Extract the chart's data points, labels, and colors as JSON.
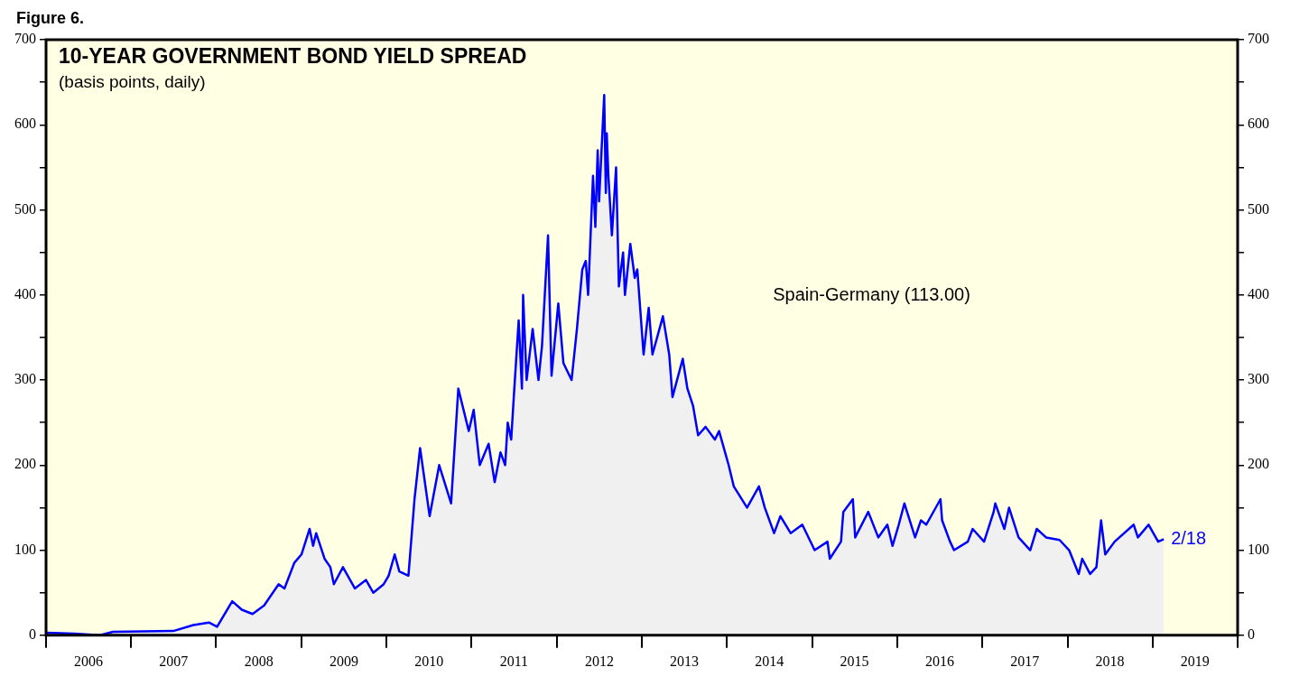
{
  "chart_data": {
    "type": "area",
    "title": "10-YEAR GOVERNMENT BOND YIELD SPREAD",
    "subtitle": "(basis points, daily)",
    "annotations": [
      "Figure 6.",
      "Spain-Germany (113.00)",
      {
        "text": "2/18",
        "x": "2019-02-18",
        "y": 113
      }
    ],
    "x": [
      "2006-01-01",
      "2006-05-01",
      "2006-08-20",
      "2006-10-15",
      "2007-07-01",
      "2007-09-25",
      "2007-12-01",
      "2008-01-05",
      "2008-03-10",
      "2008-04-20",
      "2008-06-05",
      "2008-07-25",
      "2008-09-25",
      "2008-10-20",
      "2008-12-01",
      "2009-01-01",
      "2009-02-05",
      "2009-02-20",
      "2009-03-05",
      "2009-04-10",
      "2009-05-05",
      "2009-05-20",
      "2009-06-28",
      "2009-08-18",
      "2009-10-05",
      "2009-11-05",
      "2009-12-20",
      "2010-01-10",
      "2010-02-05",
      "2010-02-25",
      "2010-04-05",
      "2010-05-01",
      "2010-05-25",
      "2010-07-05",
      "2010-08-15",
      "2010-10-05",
      "2010-11-05",
      "2010-12-20",
      "2011-01-10",
      "2011-02-05",
      "2011-03-15",
      "2011-04-10",
      "2011-05-05",
      "2011-05-25",
      "2011-06-05",
      "2011-06-20",
      "2011-07-01",
      "2011-07-22",
      "2011-08-05",
      "2011-08-10",
      "2011-08-25",
      "2011-09-20",
      "2011-10-15",
      "2011-10-30",
      "2011-11-25",
      "2011-12-10",
      "2012-01-08",
      "2012-01-30",
      "2012-03-05",
      "2012-03-28",
      "2012-04-20",
      "2012-05-05",
      "2012-05-15",
      "2012-06-05",
      "2012-06-15",
      "2012-06-25",
      "2012-07-01",
      "2012-07-23",
      "2012-07-30",
      "2012-08-03",
      "2012-08-10",
      "2012-08-25",
      "2012-09-12",
      "2012-09-24",
      "2012-10-12",
      "2012-10-20",
      "2012-11-12",
      "2012-12-01",
      "2012-12-12",
      "2013-01-08",
      "2013-01-30",
      "2013-02-15",
      "2013-04-01",
      "2013-04-28",
      "2013-05-12",
      "2013-06-25",
      "2013-07-15",
      "2013-08-08",
      "2013-08-30",
      "2013-10-01",
      "2013-11-10",
      "2013-11-28",
      "2014-01-08",
      "2014-01-30",
      "2014-03-28",
      "2014-05-18",
      "2014-06-12",
      "2014-07-22",
      "2014-08-18",
      "2014-10-01",
      "2014-11-20",
      "2015-01-12",
      "2015-03-08",
      "2015-03-18",
      "2015-05-05",
      "2015-05-15",
      "2015-06-25",
      "2015-07-05",
      "2015-08-30",
      "2015-10-12",
      "2015-11-20",
      "2015-12-12",
      "2016-01-08",
      "2016-02-01",
      "2016-03-18",
      "2016-04-12",
      "2016-05-05",
      "2016-07-05",
      "2016-07-12",
      "2016-08-15",
      "2016-09-01",
      "2016-10-30",
      "2016-11-20",
      "2017-01-08",
      "2017-02-18",
      "2017-02-25",
      "2017-04-05",
      "2017-04-25",
      "2017-06-05",
      "2017-07-25",
      "2017-08-22",
      "2017-10-01",
      "2017-11-28",
      "2018-01-08",
      "2018-02-18",
      "2018-03-05",
      "2018-04-08",
      "2018-05-05",
      "2018-05-25",
      "2018-06-12",
      "2018-07-22",
      "2018-10-12",
      "2018-10-30",
      "2018-12-15",
      "2019-01-25",
      "2019-02-18"
    ],
    "series": [
      {
        "color": "#0000ff",
        "values": [
          3,
          2,
          0,
          4,
          5,
          12,
          15,
          10,
          40,
          30,
          25,
          35,
          60,
          55,
          85,
          95,
          125,
          105,
          120,
          90,
          80,
          60,
          80,
          55,
          65,
          50,
          60,
          70,
          95,
          75,
          70,
          160,
          220,
          140,
          200,
          155,
          290,
          240,
          265,
          200,
          225,
          180,
          215,
          200,
          250,
          230,
          280,
          370,
          290,
          400,
          300,
          360,
          300,
          340,
          470,
          305,
          390,
          320,
          300,
          360,
          430,
          440,
          400,
          540,
          480,
          570,
          510,
          635,
          520,
          590,
          540,
          470,
          550,
          410,
          450,
          400,
          460,
          420,
          430,
          330,
          385,
          330,
          375,
          330,
          280,
          325,
          290,
          270,
          235,
          245,
          230,
          240,
          200,
          175,
          150,
          175,
          150,
          120,
          140,
          120,
          130,
          100,
          110,
          90,
          110,
          145,
          160,
          115,
          145,
          115,
          130,
          105,
          130,
          155,
          115,
          135,
          130,
          160,
          135,
          110,
          100,
          110,
          125,
          110,
          145,
          155,
          125,
          150,
          115,
          100,
          125,
          115,
          112,
          100,
          72,
          90,
          72,
          80,
          135,
          95,
          110,
          130,
          115,
          130,
          110,
          113
        ]
      }
    ],
    "xlim": [
      "2006-01-01",
      "2020-01-01"
    ],
    "xticks": [
      {
        "value": "2006-01-01",
        "label": null
      },
      {
        "value": "2006-07-02",
        "label": "2006"
      },
      {
        "value": "2007-01-01",
        "label": null
      },
      {
        "value": "2007-07-02",
        "label": "2007"
      },
      {
        "value": "2008-01-01",
        "label": null
      },
      {
        "value": "2008-07-02",
        "label": "2008"
      },
      {
        "value": "2009-01-01",
        "label": null
      },
      {
        "value": "2009-07-02",
        "label": "2009"
      },
      {
        "value": "2010-01-01",
        "label": null
      },
      {
        "value": "2010-07-02",
        "label": "2010"
      },
      {
        "value": "2011-01-01",
        "label": null
      },
      {
        "value": "2011-07-02",
        "label": "2011"
      },
      {
        "value": "2012-01-01",
        "label": null
      },
      {
        "value": "2012-07-02",
        "label": "2012"
      },
      {
        "value": "2013-01-01",
        "label": null
      },
      {
        "value": "2013-07-02",
        "label": "2013"
      },
      {
        "value": "2014-01-01",
        "label": null
      },
      {
        "value": "2014-07-02",
        "label": "2014"
      },
      {
        "value": "2015-01-01",
        "label": null
      },
      {
        "value": "2015-07-02",
        "label": "2015"
      },
      {
        "value": "2016-01-01",
        "label": null
      },
      {
        "value": "2016-07-02",
        "label": "2016"
      },
      {
        "value": "2017-01-01",
        "label": null
      },
      {
        "value": "2017-07-02",
        "label": "2017"
      },
      {
        "value": "2018-01-01",
        "label": null
      },
      {
        "value": "2018-07-02",
        "label": "2018"
      },
      {
        "value": "2019-01-01",
        "label": null
      },
      {
        "value": "2019-07-02",
        "label": "2019"
      },
      {
        "value": "2020-01-01",
        "label": null
      }
    ],
    "ylim": [
      0,
      700
    ],
    "yticks": [
      0,
      {
        "value": 50,
        "label": null
      },
      100,
      {
        "value": 150,
        "label": null
      },
      200,
      {
        "value": 250,
        "label": null
      },
      300,
      {
        "value": 350,
        "label": null
      },
      400,
      {
        "value": 450,
        "label": null
      },
      500,
      {
        "value": 550,
        "label": null
      },
      600,
      {
        "value": 650,
        "label": null
      },
      700
    ],
    "y2lim": [
      0,
      700
    ],
    "y2ticks": [
      0,
      {
        "value": 50,
        "label": null
      },
      100,
      {
        "value": 150,
        "label": null
      },
      200,
      {
        "value": 250,
        "label": null
      },
      300,
      {
        "value": 350,
        "label": null
      },
      400,
      {
        "value": 450,
        "label": null
      },
      500,
      {
        "value": 550,
        "label": null
      },
      600,
      {
        "value": 650,
        "label": null
      },
      700
    ],
    "grid": false,
    "legend": false
  }
}
